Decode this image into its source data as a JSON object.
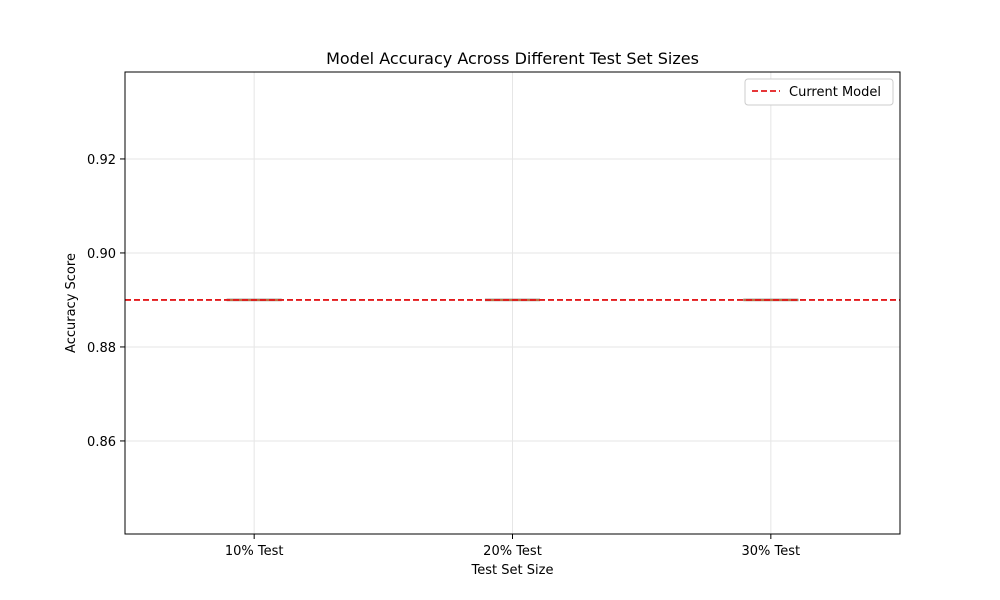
{
  "chart_data": {
    "type": "box",
    "title": "Model Accuracy Across Different Test Set Sizes",
    "xlabel": "Test Set Size",
    "ylabel": "Accuracy Score",
    "categories": [
      "10% Test",
      "20% Test",
      "30% Test"
    ],
    "values": [
      0.89,
      0.89,
      0.89
    ],
    "ylim": [
      0.8402,
      0.9385
    ],
    "yticks": [
      0.86,
      0.88,
      0.9,
      0.92
    ],
    "ytick_labels": [
      "0.86",
      "0.88",
      "0.90",
      "0.92"
    ],
    "reference_line": {
      "name": "Current Model",
      "value": 0.89,
      "style": "dashed",
      "color": "#e31a1c"
    },
    "box_color": "#e07b39",
    "grid": true,
    "legend_position": "top-right"
  }
}
